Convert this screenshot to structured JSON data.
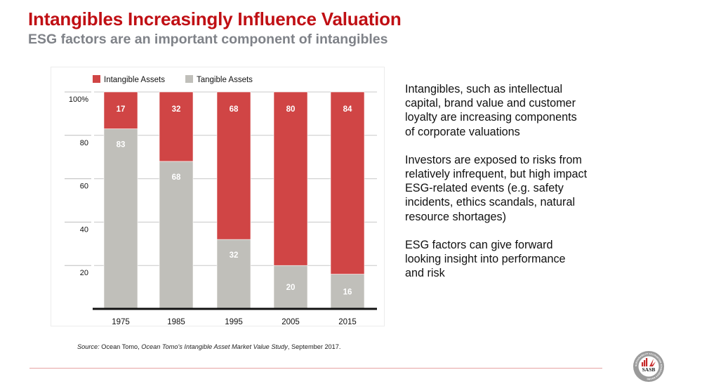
{
  "header": {
    "title": "Intangibles Increasingly Influence Valuation",
    "subtitle": "ESG factors are an important component of intangibles"
  },
  "colors": {
    "title": "#c00f14",
    "subtitle": "#7f8288",
    "intangible": "#d04545",
    "tangible": "#c0bfba",
    "rule": "#e6a3a3"
  },
  "chart_data": {
    "type": "bar",
    "stacked": true,
    "title": "",
    "xlabel": "",
    "ylabel": "",
    "ylim": [
      0,
      100
    ],
    "y_ticks": [
      20,
      40,
      60,
      80,
      100
    ],
    "y_tick_labels": [
      "20",
      "40",
      "60",
      "80",
      "100%"
    ],
    "grid": true,
    "legend_position": "top-left",
    "categories": [
      "1975",
      "1985",
      "1995",
      "2005",
      "2015"
    ],
    "series": [
      {
        "name": "Tangible Assets",
        "color": "#c0bfba",
        "values": [
          83,
          68,
          32,
          20,
          16
        ]
      },
      {
        "name": "Intangible Assets",
        "color": "#d04545",
        "values": [
          17,
          32,
          68,
          80,
          84
        ]
      }
    ],
    "legend": [
      "Intangible Assets",
      "Tangible Assets"
    ]
  },
  "bullets": [
    "Intangibles, such as intellectual capital, brand value and customer loyalty are increasing components of corporate valuations",
    "Investors are exposed to risks from relatively infrequent, but high impact ESG-related events (e.g. safety incidents, ethics scandals, natural resource shortages)",
    "ESG factors can give forward looking insight into performance and risk"
  ],
  "source": {
    "label": "Source:",
    "org": " Ocean Tomo, ",
    "study": "Ocean Tomo's Intangible Asset Market Value Study",
    "date": ", September 2017."
  },
  "logo": {
    "name": "SASB",
    "ring_text": "SUSTAINABILITY ACCOUNTING STANDARDS BOARD"
  }
}
